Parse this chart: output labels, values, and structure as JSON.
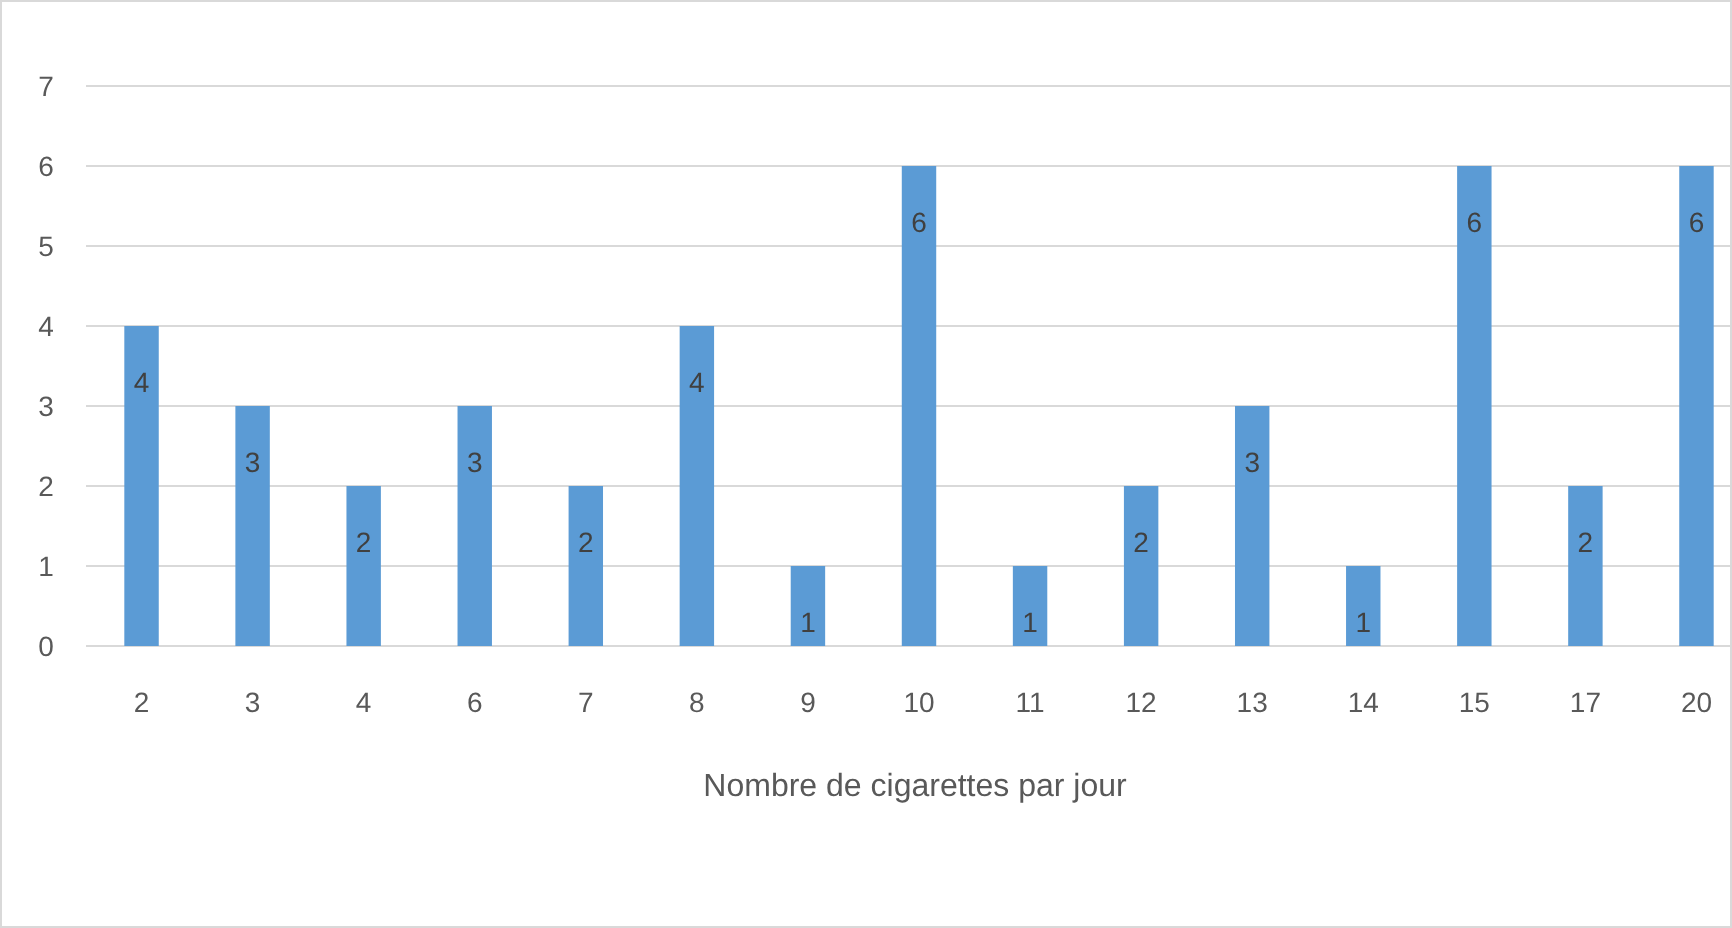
{
  "chart_data": {
    "type": "bar",
    "xlabel": "Nombre de cigarettes par jour",
    "categories": [
      "2",
      "3",
      "4",
      "6",
      "7",
      "8",
      "9",
      "10",
      "11",
      "12",
      "13",
      "14",
      "15",
      "17",
      "20"
    ],
    "values": [
      4,
      3,
      2,
      3,
      2,
      4,
      1,
      6,
      1,
      2,
      3,
      1,
      6,
      2,
      6
    ],
    "color": "#5b9bd5",
    "ylim": [
      0,
      7
    ],
    "yticks": [
      0,
      1,
      2,
      3,
      4,
      5,
      6,
      7
    ],
    "grid": "y",
    "data_labels": true
  }
}
